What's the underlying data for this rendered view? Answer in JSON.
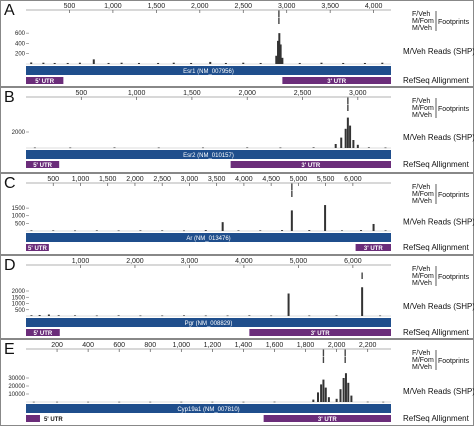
{
  "labels": {
    "fveh": "F/Veh",
    "mfom": "M/Fom",
    "mveh": "M/Veh",
    "footprints": "Footprints",
    "reads": "M/Veh Reads (SHP)",
    "refseq": "RefSeq Allignment",
    "utr5": "5' UTR",
    "utr3": "3' UTR"
  },
  "colors": {
    "gene_bar": "#1f4e8c",
    "utr": "#6b2d7a",
    "reads": "#333333",
    "footprint": "#444444",
    "panel_border": "#888888"
  },
  "chart_data": [
    {
      "type": "bar",
      "panel": "A",
      "gene": "Esr1 (NM_007956)",
      "x_ticks": [
        "500",
        "1,000",
        "1,500",
        "2,000",
        "2,500",
        "3,000",
        "3,500",
        "4,000"
      ],
      "x_tick_values": [
        500,
        1000,
        1500,
        2000,
        2500,
        3000,
        3500,
        4000
      ],
      "xlim": [
        0,
        4200
      ],
      "y_ticks": [
        "600",
        "400",
        "200"
      ],
      "y_tick_values": [
        600,
        400,
        200
      ],
      "ylim": [
        0,
        700
      ],
      "utr5_range": [
        0,
        430
      ],
      "utr3_range": [
        2950,
        4200
      ],
      "footprints": [
        {
          "track": "fveh",
          "x": 2910
        },
        {
          "track": "mfom",
          "x": 2910
        }
      ],
      "reads": [
        {
          "x": 60,
          "y": 30
        },
        {
          "x": 200,
          "y": 25
        },
        {
          "x": 330,
          "y": 20
        },
        {
          "x": 480,
          "y": 20
        },
        {
          "x": 620,
          "y": 25
        },
        {
          "x": 780,
          "y": 90
        },
        {
          "x": 950,
          "y": 20
        },
        {
          "x": 1100,
          "y": 25
        },
        {
          "x": 1300,
          "y": 20
        },
        {
          "x": 1520,
          "y": 20
        },
        {
          "x": 1700,
          "y": 25
        },
        {
          "x": 1900,
          "y": 20
        },
        {
          "x": 2120,
          "y": 40
        },
        {
          "x": 2300,
          "y": 20
        },
        {
          "x": 2500,
          "y": 25
        },
        {
          "x": 2700,
          "y": 20
        },
        {
          "x": 2880,
          "y": 160
        },
        {
          "x": 2900,
          "y": 450
        },
        {
          "x": 2915,
          "y": 600
        },
        {
          "x": 2930,
          "y": 380
        },
        {
          "x": 2950,
          "y": 120
        },
        {
          "x": 3150,
          "y": 20
        },
        {
          "x": 3400,
          "y": 25
        },
        {
          "x": 3650,
          "y": 20
        },
        {
          "x": 3900,
          "y": 20
        },
        {
          "x": 4100,
          "y": 25
        }
      ]
    },
    {
      "type": "bar",
      "panel": "B",
      "gene": "Esr2 (NM_010157)",
      "x_ticks": [
        "500",
        "1,000",
        "1,500",
        "2,000",
        "2,500",
        "3,000"
      ],
      "x_tick_values": [
        500,
        1000,
        1500,
        2000,
        2500,
        3000
      ],
      "xlim": [
        0,
        3300
      ],
      "y_ticks": [
        "2000"
      ],
      "y_tick_values": [
        2000
      ],
      "ylim": [
        0,
        4000
      ],
      "utr5_range": [
        0,
        300
      ],
      "utr3_range": [
        1850,
        3300
      ],
      "footprints": [
        {
          "track": "fveh",
          "x": 2910
        },
        {
          "track": "mfom",
          "x": 2910
        }
      ],
      "reads": [
        {
          "x": 80,
          "y": 60
        },
        {
          "x": 400,
          "y": 60
        },
        {
          "x": 800,
          "y": 70
        },
        {
          "x": 1200,
          "y": 60
        },
        {
          "x": 1600,
          "y": 60
        },
        {
          "x": 2000,
          "y": 70
        },
        {
          "x": 2300,
          "y": 60
        },
        {
          "x": 2600,
          "y": 80
        },
        {
          "x": 2800,
          "y": 500
        },
        {
          "x": 2850,
          "y": 1300
        },
        {
          "x": 2890,
          "y": 2400
        },
        {
          "x": 2910,
          "y": 3800
        },
        {
          "x": 2930,
          "y": 2800
        },
        {
          "x": 2960,
          "y": 1000
        },
        {
          "x": 3000,
          "y": 400
        },
        {
          "x": 3100,
          "y": 80
        },
        {
          "x": 3250,
          "y": 60
        }
      ]
    },
    {
      "type": "bar",
      "panel": "C",
      "gene": "Ar (NM_013476)",
      "x_ticks": [
        "500",
        "1,000",
        "1,500",
        "2,000",
        "2,500",
        "3,000",
        "3,500",
        "4,000",
        "4,500",
        "5,000",
        "5,500",
        "6,000"
      ],
      "x_tick_values": [
        500,
        1000,
        1500,
        2000,
        2500,
        3000,
        3500,
        4000,
        4500,
        5000,
        5500,
        6000
      ],
      "xlim": [
        0,
        6700
      ],
      "y_ticks": [
        "1500",
        "1000",
        "500"
      ],
      "y_tick_values": [
        1500,
        1000,
        500
      ],
      "ylim": [
        0,
        1900
      ],
      "utr5_range": [
        0,
        420
      ],
      "utr3_range": [
        6050,
        6700
      ],
      "footprints": [
        {
          "track": "fveh",
          "x": 4880
        },
        {
          "track": "mfom",
          "x": 4880
        }
      ],
      "reads": [
        {
          "x": 100,
          "y": 40
        },
        {
          "x": 500,
          "y": 40
        },
        {
          "x": 900,
          "y": 35
        },
        {
          "x": 1300,
          "y": 40
        },
        {
          "x": 1700,
          "y": 35
        },
        {
          "x": 2100,
          "y": 40
        },
        {
          "x": 2500,
          "y": 40
        },
        {
          "x": 2900,
          "y": 35
        },
        {
          "x": 3300,
          "y": 60
        },
        {
          "x": 3610,
          "y": 580
        },
        {
          "x": 3900,
          "y": 40
        },
        {
          "x": 4300,
          "y": 40
        },
        {
          "x": 4700,
          "y": 60
        },
        {
          "x": 4880,
          "y": 1350
        },
        {
          "x": 5200,
          "y": 60
        },
        {
          "x": 5490,
          "y": 1700
        },
        {
          "x": 5800,
          "y": 40
        },
        {
          "x": 6150,
          "y": 60
        },
        {
          "x": 6380,
          "y": 460
        },
        {
          "x": 6600,
          "y": 40
        }
      ]
    },
    {
      "type": "bar",
      "panel": "D",
      "gene": "Pgr (NM_008829)",
      "x_ticks": [
        "1,000",
        "2,000",
        "3,000",
        "4,000",
        "5,000",
        "6,000"
      ],
      "x_tick_values": [
        1000,
        2000,
        3000,
        4000,
        5000,
        6000
      ],
      "xlim": [
        0,
        6700
      ],
      "y_ticks": [
        "2000",
        "1500",
        "1000",
        "500"
      ],
      "y_tick_values": [
        2000,
        1500,
        1000,
        500
      ],
      "ylim": [
        0,
        2400
      ],
      "utr5_range": [
        0,
        620
      ],
      "utr3_range": [
        4100,
        6700
      ],
      "footprints": [
        {
          "track": "mfom",
          "x": 6170
        }
      ],
      "reads": [
        {
          "x": 100,
          "y": 60
        },
        {
          "x": 250,
          "y": 80
        },
        {
          "x": 420,
          "y": 120
        },
        {
          "x": 600,
          "y": 60
        },
        {
          "x": 900,
          "y": 50
        },
        {
          "x": 1300,
          "y": 40
        },
        {
          "x": 1700,
          "y": 50
        },
        {
          "x": 2100,
          "y": 40
        },
        {
          "x": 2500,
          "y": 40
        },
        {
          "x": 2900,
          "y": 50
        },
        {
          "x": 3300,
          "y": 40
        },
        {
          "x": 3700,
          "y": 40
        },
        {
          "x": 4100,
          "y": 50
        },
        {
          "x": 4500,
          "y": 40
        },
        {
          "x": 4820,
          "y": 1800
        },
        {
          "x": 5200,
          "y": 40
        },
        {
          "x": 5700,
          "y": 50
        },
        {
          "x": 6170,
          "y": 2300
        },
        {
          "x": 6500,
          "y": 40
        }
      ]
    },
    {
      "type": "bar",
      "panel": "E",
      "gene": "Cyp19a1 (NM_007810)",
      "x_ticks": [
        "200",
        "400",
        "600",
        "800",
        "1,000",
        "1,200",
        "1,400",
        "1,600",
        "1,800",
        "2,000",
        "2,200"
      ],
      "x_tick_values": [
        200,
        400,
        600,
        800,
        1000,
        1200,
        1400,
        1600,
        1800,
        2000,
        2200
      ],
      "xlim": [
        0,
        2350
      ],
      "y_ticks": [
        "30000",
        "20000",
        "10000"
      ],
      "y_tick_values": [
        30000,
        20000,
        10000
      ],
      "ylim": [
        0,
        40000
      ],
      "utr5_range": [
        0,
        90
      ],
      "utr3_range": [
        1530,
        2350
      ],
      "footprints": [
        {
          "track": "fveh",
          "x": 1915
        },
        {
          "track": "fveh",
          "x": 2055
        },
        {
          "track": "mfom",
          "x": 1915
        },
        {
          "track": "mfom",
          "x": 2055
        }
      ],
      "reads": [
        {
          "x": 50,
          "y": 300
        },
        {
          "x": 200,
          "y": 300
        },
        {
          "x": 400,
          "y": 300
        },
        {
          "x": 600,
          "y": 300
        },
        {
          "x": 800,
          "y": 300
        },
        {
          "x": 1000,
          "y": 300
        },
        {
          "x": 1200,
          "y": 300
        },
        {
          "x": 1400,
          "y": 300
        },
        {
          "x": 1600,
          "y": 400
        },
        {
          "x": 1850,
          "y": 3000
        },
        {
          "x": 1880,
          "y": 12000
        },
        {
          "x": 1900,
          "y": 22000
        },
        {
          "x": 1915,
          "y": 28000
        },
        {
          "x": 1930,
          "y": 18000
        },
        {
          "x": 1950,
          "y": 6000
        },
        {
          "x": 2000,
          "y": 4000
        },
        {
          "x": 2025,
          "y": 16000
        },
        {
          "x": 2045,
          "y": 30000
        },
        {
          "x": 2060,
          "y": 36000
        },
        {
          "x": 2075,
          "y": 24000
        },
        {
          "x": 2095,
          "y": 8000
        },
        {
          "x": 2200,
          "y": 400
        },
        {
          "x": 2300,
          "y": 300
        }
      ]
    }
  ]
}
